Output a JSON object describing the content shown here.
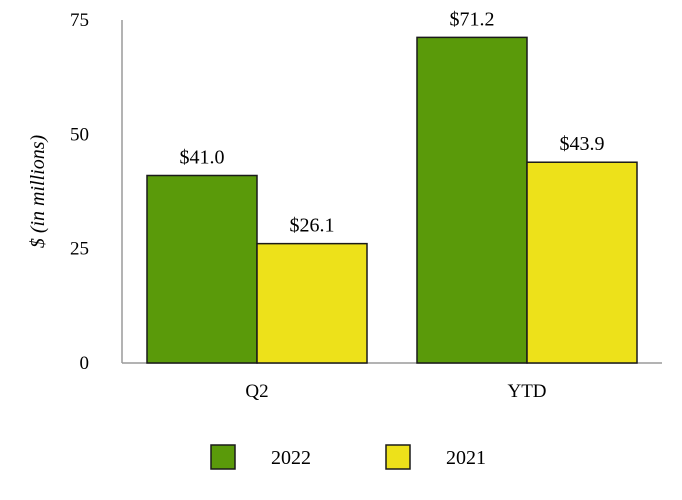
{
  "chart_data": {
    "type": "bar",
    "categories": [
      "Q2",
      "YTD"
    ],
    "series": [
      {
        "name": "2022",
        "values": [
          41.0,
          71.2
        ],
        "labels": [
          "$41.0",
          "$71.2"
        ],
        "color": "#5a9a0a"
      },
      {
        "name": "2021",
        "values": [
          26.1,
          43.9
        ],
        "labels": [
          "$26.1",
          "$43.9"
        ],
        "color": "#ede11a"
      }
    ],
    "ylabel": "$ (in millions)",
    "ylim": [
      0,
      75
    ],
    "yticks": [
      "0",
      "25",
      "50",
      "75"
    ],
    "grid": false,
    "legend": "bottom"
  }
}
